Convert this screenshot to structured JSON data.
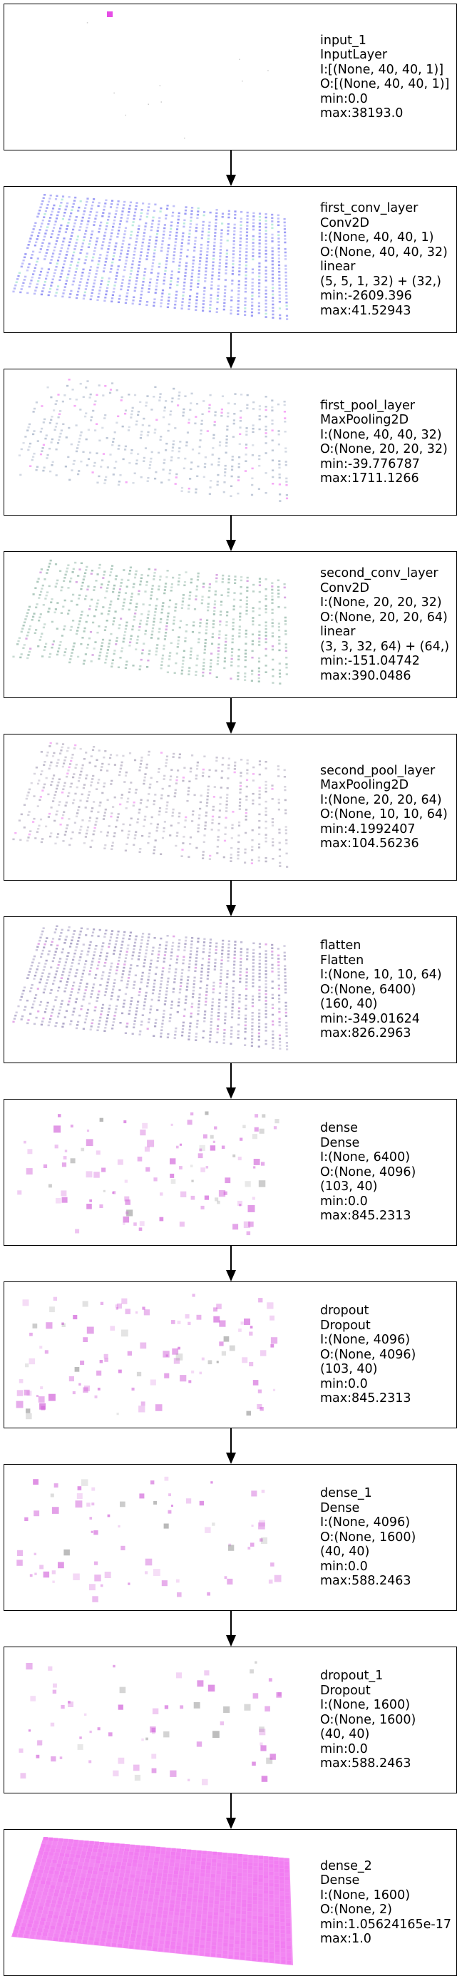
{
  "layers": [
    {
      "name": "input_1",
      "type": "InputLayer",
      "lines": [
        "input_1",
        "InputLayer",
        "I:[(None, 40, 40, 1)]",
        "O:[(None, 40, 40, 1)]",
        "min:0.0",
        "max:38193.0"
      ],
      "viz": {
        "style": "input",
        "color": "#e020e0"
      }
    },
    {
      "name": "first_conv_layer",
      "type": "Conv2D",
      "lines": [
        "first_conv_layer",
        "Conv2D",
        "I:(None, 40, 40, 1)",
        "O:(None, 40, 40, 32)",
        "linear",
        "(5, 5, 1, 32) + (32,)",
        "min:-2609.396",
        "max:41.52943"
      ],
      "viz": {
        "style": "grid",
        "color": "#6a6af0",
        "accent": "#8fe0c8",
        "density": 0.9
      }
    },
    {
      "name": "first_pool_layer",
      "type": "MaxPooling2D",
      "lines": [
        "first_pool_layer",
        "MaxPooling2D",
        "I:(None, 40, 40, 32)",
        "O:(None, 20, 20, 32)",
        "min:-39.776787",
        "max:1711.1266"
      ],
      "viz": {
        "style": "grid",
        "color": "#9aa8c0",
        "accent": "#f070f0",
        "density": 0.35
      }
    },
    {
      "name": "second_conv_layer",
      "type": "Conv2D",
      "lines": [
        "second_conv_layer",
        "Conv2D",
        "I:(None, 20, 20, 32)",
        "O:(None, 20, 20, 64)",
        "linear",
        "(3, 3, 32, 64) + (64,)",
        "min:-151.04742",
        "max:390.0486"
      ],
      "viz": {
        "style": "grid",
        "color": "#7faa98",
        "accent": "#c070d0",
        "density": 0.6
      }
    },
    {
      "name": "second_pool_layer",
      "type": "MaxPooling2D",
      "lines": [
        "second_pool_layer",
        "MaxPooling2D",
        "I:(None, 20, 20, 64)",
        "O:(None, 10, 10, 64)",
        "min:4.1992407",
        "max:104.56236"
      ],
      "viz": {
        "style": "grid",
        "color": "#a098b0",
        "accent": "#f080f0",
        "density": 0.45
      }
    },
    {
      "name": "flatten",
      "type": "Flatten",
      "lines": [
        "flatten",
        "Flatten",
        "I:(None, 10, 10, 64)",
        "O:(None, 6400)",
        "(160, 40)",
        "min:-349.01624",
        "max:826.2963"
      ],
      "viz": {
        "style": "grid",
        "color": "#8a7fb0",
        "accent": "#d070d8",
        "density": 0.8
      }
    },
    {
      "name": "dense",
      "type": "Dense",
      "lines": [
        "dense",
        "Dense",
        "I:(None, 6400)",
        "O:(None, 4096)",
        "(103, 40)",
        "min:0.0",
        "max:845.2313"
      ],
      "viz": {
        "style": "scatter",
        "color": "#d060d8",
        "count": 110
      }
    },
    {
      "name": "dropout",
      "type": "Dropout",
      "lines": [
        "dropout",
        "Dropout",
        "I:(None, 4096)",
        "O:(None, 4096)",
        "(103, 40)",
        "min:0.0",
        "max:845.2313"
      ],
      "viz": {
        "style": "scatter",
        "color": "#d060d8",
        "count": 110
      }
    },
    {
      "name": "dense_1",
      "type": "Dense",
      "lines": [
        "dense_1",
        "Dense",
        "I:(None, 4096)",
        "O:(None, 1600)",
        "(40, 40)",
        "min:0.0",
        "max:588.2463"
      ],
      "viz": {
        "style": "scatter",
        "color": "#d060d8",
        "count": 75
      }
    },
    {
      "name": "dropout_1",
      "type": "Dropout",
      "lines": [
        "dropout_1",
        "Dropout",
        "I:(None, 1600)",
        "O:(None, 1600)",
        "(40, 40)",
        "min:0.0",
        "max:588.2463"
      ],
      "viz": {
        "style": "scatter",
        "color": "#d060d8",
        "count": 70
      }
    },
    {
      "name": "dense_2",
      "type": "Dense",
      "lines": [
        "dense_2",
        "Dense",
        "I:(None, 1600)",
        "O:(None, 2)",
        "min:1.05624165e-17",
        "max:1.0"
      ],
      "viz": {
        "style": "solid",
        "color": "#f070f0"
      }
    }
  ]
}
